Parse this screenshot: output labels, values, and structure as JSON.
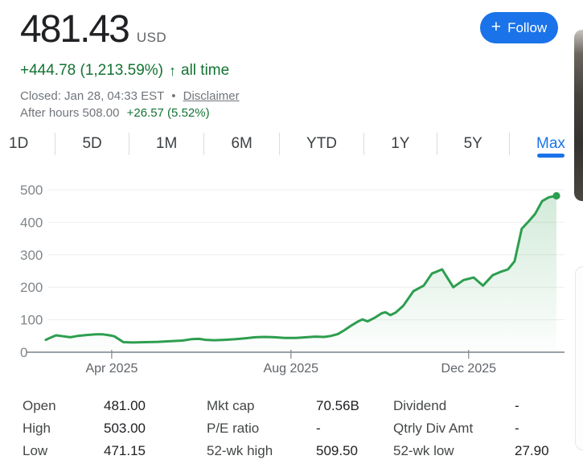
{
  "header": {
    "price": "481.43",
    "currency": "USD",
    "change": "+444.78 (1,213.59%)",
    "change_arrow": "↑",
    "change_period": "all time",
    "market_status": "Closed: Jan 28, 04:33 EST",
    "separator": "•",
    "disclaimer_label": "Disclaimer",
    "after_hours_text": "After hours 508.00",
    "after_hours_change": "+26.57 (5.52%)",
    "follow_button": {
      "icon": "+",
      "label": "Follow"
    }
  },
  "range_tabs": {
    "items": [
      "1D",
      "5D",
      "1M",
      "6M",
      "YTD",
      "1Y",
      "5Y",
      "Max"
    ],
    "selected": "Max"
  },
  "chart_data": {
    "type": "line",
    "subtype": "area-gradient",
    "unit": "USD",
    "range": "Max",
    "grid": "horizontal-only",
    "ylim": [
      0,
      500
    ],
    "yticks": [
      0,
      100,
      200,
      300,
      400,
      500
    ],
    "xticks": [
      {
        "label": "Apr 2025",
        "pos": 0.129
      },
      {
        "label": "Aug 2025",
        "pos": 0.48
      },
      {
        "label": "Dec 2025",
        "pos": 0.828
      }
    ],
    "last_point_value": 481.43,
    "points": [
      [
        0.0,
        38
      ],
      [
        0.008,
        44
      ],
      [
        0.02,
        52
      ],
      [
        0.034,
        49
      ],
      [
        0.048,
        46
      ],
      [
        0.062,
        50
      ],
      [
        0.08,
        53
      ],
      [
        0.098,
        55
      ],
      [
        0.112,
        55
      ],
      [
        0.125,
        52
      ],
      [
        0.134,
        49
      ],
      [
        0.143,
        40
      ],
      [
        0.152,
        31
      ],
      [
        0.17,
        30
      ],
      [
        0.195,
        31
      ],
      [
        0.22,
        32
      ],
      [
        0.245,
        34
      ],
      [
        0.268,
        36
      ],
      [
        0.285,
        40
      ],
      [
        0.3,
        41
      ],
      [
        0.313,
        38
      ],
      [
        0.33,
        37
      ],
      [
        0.35,
        38
      ],
      [
        0.372,
        40
      ],
      [
        0.392,
        43
      ],
      [
        0.41,
        46
      ],
      [
        0.428,
        47
      ],
      [
        0.448,
        46
      ],
      [
        0.468,
        44
      ],
      [
        0.49,
        44
      ],
      [
        0.51,
        46
      ],
      [
        0.528,
        48
      ],
      [
        0.545,
        47
      ],
      [
        0.558,
        50
      ],
      [
        0.572,
        56
      ],
      [
        0.585,
        68
      ],
      [
        0.598,
        82
      ],
      [
        0.612,
        95
      ],
      [
        0.62,
        101
      ],
      [
        0.63,
        95
      ],
      [
        0.645,
        107
      ],
      [
        0.658,
        120
      ],
      [
        0.665,
        123
      ],
      [
        0.675,
        114
      ],
      [
        0.685,
        122
      ],
      [
        0.7,
        143
      ],
      [
        0.72,
        188
      ],
      [
        0.74,
        205
      ],
      [
        0.756,
        242
      ],
      [
        0.776,
        255
      ],
      [
        0.798,
        200
      ],
      [
        0.818,
        222
      ],
      [
        0.838,
        230
      ],
      [
        0.856,
        205
      ],
      [
        0.875,
        237
      ],
      [
        0.89,
        247
      ],
      [
        0.905,
        255
      ],
      [
        0.918,
        280
      ],
      [
        0.932,
        380
      ],
      [
        0.945,
        402
      ],
      [
        0.958,
        425
      ],
      [
        0.972,
        465
      ],
      [
        0.985,
        477
      ],
      [
        1.0,
        481.43
      ]
    ]
  },
  "stats": {
    "columns": [
      {
        "rows": [
          {
            "label": "Open",
            "value": "481.00"
          },
          {
            "label": "High",
            "value": "503.00"
          },
          {
            "label": "Low",
            "value": "471.15"
          }
        ]
      },
      {
        "rows": [
          {
            "label": "Mkt cap",
            "value": "70.56B"
          },
          {
            "label": "P/E ratio",
            "value": "-"
          },
          {
            "label": "52-wk high",
            "value": "509.50"
          }
        ]
      },
      {
        "rows": [
          {
            "label": "Dividend",
            "value": "-"
          },
          {
            "label": "Qtrly Div Amt",
            "value": "-"
          },
          {
            "label": "52-wk low",
            "value": "27.90"
          }
        ]
      }
    ]
  },
  "colors": {
    "accent_blue": "#1a73e8",
    "green_text": "#137333",
    "chart_line_green": "#2d9e4f",
    "price_black": "#202124",
    "muted_gray": "#70757a",
    "tab_gray": "#3c4043",
    "axis_label_gray": "#80868b",
    "x_label_gray": "#5f6368",
    "axis_line_gray": "#9aa0a6",
    "gridline_gray": "#eeeeee",
    "divider_gray": "#dadce0"
  }
}
